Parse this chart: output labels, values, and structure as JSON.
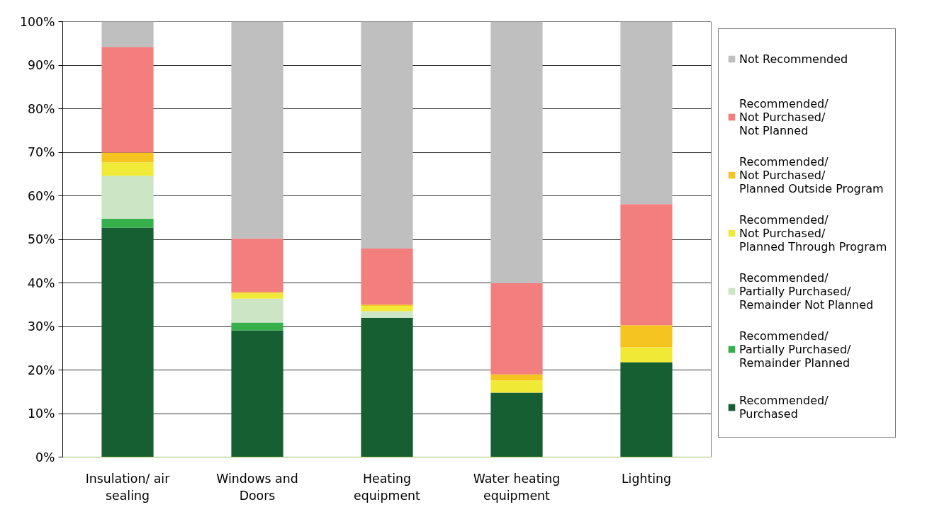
{
  "chart_data": {
    "type": "bar",
    "stacked": true,
    "categories": [
      "Insulation/ air sealing",
      "Windows and Doors",
      "Heating equipment",
      "Water heating equipment",
      "Lighting"
    ],
    "series": [
      {
        "name": "Recommended/ Purchased",
        "color": "#155f32",
        "values": [
          52.7,
          29.1,
          32.0,
          14.8,
          21.8
        ]
      },
      {
        "name": "Recommended/ Partially Purchased/ Remainder Planned",
        "color": "#35b04a",
        "values": [
          2.0,
          1.8,
          0,
          0,
          0
        ]
      },
      {
        "name": "Recommended/ Partially Purchased/ Remainder Not Planned",
        "color": "#cce5c5",
        "values": [
          9.9,
          5.5,
          1.5,
          0,
          0
        ]
      },
      {
        "name": "Recommended/ Not Purchased/ Planned Through Program",
        "color": "#f0e936",
        "values": [
          3.1,
          1.2,
          1.2,
          2.8,
          3.4
        ]
      },
      {
        "name": "Recommended/ Not Purchased/ Planned Outside Program",
        "color": "#f5c421",
        "values": [
          2.2,
          0.3,
          0.3,
          1.4,
          5.1
        ]
      },
      {
        "name": "Recommended/ Not Purchased/ Not Planned",
        "color": "#f27f7e",
        "values": [
          24.3,
          12.3,
          12.9,
          20.9,
          27.8
        ]
      },
      {
        "name": "Not Recommended",
        "color": "#bfbfbf",
        "values": [
          5.8,
          49.8,
          52.1,
          60.1,
          41.9
        ]
      }
    ],
    "ylim": [
      0,
      100
    ],
    "yticks": [
      {
        "value": 0,
        "label": "0%"
      },
      {
        "value": 10,
        "label": "10%"
      },
      {
        "value": 20,
        "label": "20%"
      },
      {
        "value": 30,
        "label": "30%"
      },
      {
        "value": 40,
        "label": "40%"
      },
      {
        "value": 50,
        "label": "50%"
      },
      {
        "value": 60,
        "label": "60%"
      },
      {
        "value": 70,
        "label": "70%"
      },
      {
        "value": 80,
        "label": "80%"
      },
      {
        "value": 90,
        "label": "90%"
      },
      {
        "value": 100,
        "label": "100%"
      }
    ],
    "grid": "y",
    "legend": "right"
  }
}
